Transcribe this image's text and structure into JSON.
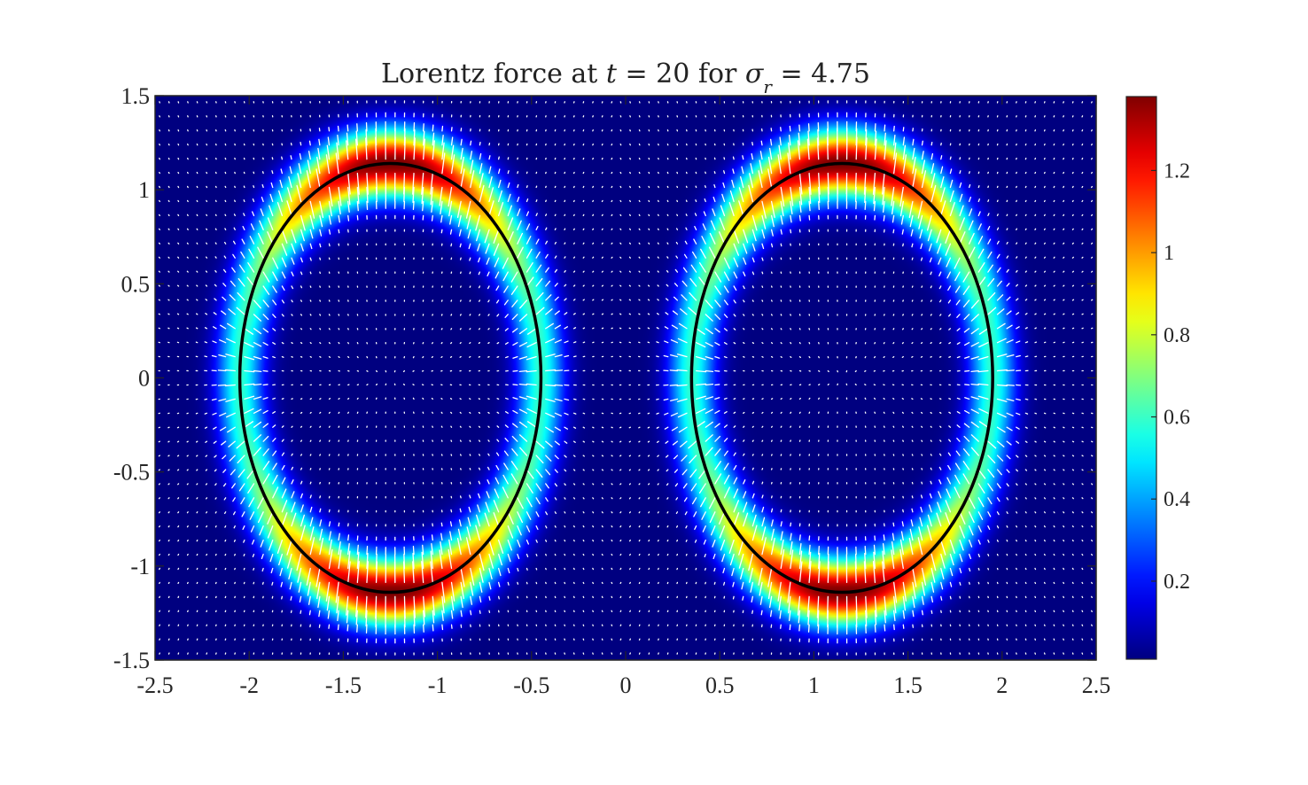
{
  "chart_data": {
    "type": "heatmap",
    "title": {
      "prefix": "Lorentz force at ",
      "t_symbol": "t",
      "t_part": " = 20 for ",
      "sigma_symbol": "σ",
      "sigma_sub": "r",
      "sigma_part": " = 4.75"
    },
    "xlim": [
      -2.5,
      2.5
    ],
    "ylim": [
      -1.5,
      1.5
    ],
    "x_ticks": [
      -2.5,
      -2,
      -1.5,
      -1,
      -0.5,
      0,
      0.5,
      1,
      1.5,
      2,
      2.5
    ],
    "x_tick_labels": [
      "-2.5",
      "-2",
      "-1.5",
      "-1",
      "-0.5",
      "0",
      "0.5",
      "1",
      "1.5",
      "2",
      "2.5"
    ],
    "y_ticks": [
      -1.5,
      -1,
      -0.5,
      0,
      0.5,
      1,
      1.5
    ],
    "y_tick_labels": [
      "-1.5",
      "-1",
      "-0.5",
      "0",
      "0.5",
      "1",
      "1.5"
    ],
    "colorbar": {
      "range": [
        0.01,
        1.38
      ],
      "ticks": [
        0.2,
        0.4,
        0.6,
        0.8,
        1,
        1.2
      ],
      "tick_labels": [
        "0.2",
        "0.4",
        "0.6",
        "0.8",
        "1",
        "1.2"
      ],
      "colormap": "jet"
    },
    "ellipses": [
      {
        "cx": -1.25,
        "cy": 0,
        "rx": 0.8,
        "ry": 1.14,
        "color": "#000000"
      },
      {
        "cx": 1.15,
        "cy": 0,
        "rx": 0.8,
        "ry": 1.14,
        "color": "#000000"
      }
    ],
    "field": {
      "peak_magnitude": 1.38,
      "ring_width": 0.11,
      "vector_spacing_x": 0.05,
      "vector_spacing_y": 0.075,
      "vector_color": "#ffffff"
    },
    "grid": false,
    "legend": "none",
    "colors": {
      "background": "#ffffff",
      "axes_edge": "#262626"
    }
  }
}
